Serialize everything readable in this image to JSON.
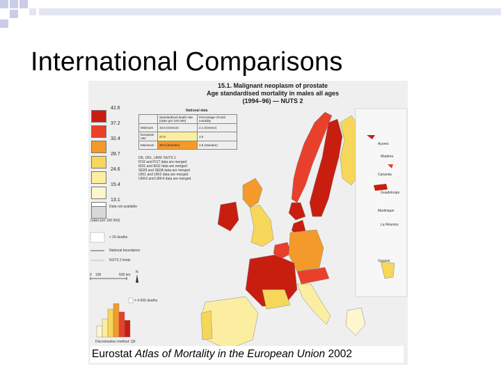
{
  "slide": {
    "title": "International Comparisons",
    "caption_prefix": "Eurostat ",
    "caption_italic": "Atlas of Mortality in the European Union",
    "caption_suffix": " 2002"
  },
  "map": {
    "title_line1": "15.1. Malignant neoplasm of prostate",
    "title_line2": "Age standardised mortality in males all ages",
    "title_line3": "(1994–96) — NUTS 2",
    "legend_classes": [
      {
        "value": "42.6",
        "color": "#c81e10"
      },
      {
        "value": "37.2",
        "color": "#e8402a"
      },
      {
        "value": "32.4",
        "color": "#f39a2a"
      },
      {
        "value": "28.7",
        "color": "#f7d75a"
      },
      {
        "value": "24.6",
        "color": "#fbeea0"
      },
      {
        "value": "15.4",
        "color": "#fdf6cf"
      },
      {
        "value": "13.1",
        "color": "#ffffff"
      }
    ],
    "not_available": "Data not available",
    "rates_unit": "(rates per 100 000)",
    "few_deaths": "< 20 deaths",
    "national_boundaries": "National boundaries",
    "nuts2_limits": "NUTS 2 limits",
    "scale_start": "0",
    "scale_mid": "100",
    "scale_end": "500 km",
    "north": "N",
    "histogram_label": "= 4 600 deaths",
    "discretisation": "Discretisation method: Q6",
    "national_data": {
      "heading": "National data",
      "col1": "Standardised death rate (rates per 100 000)",
      "col2": "Percentage of total mortality",
      "rows": [
        {
          "label": "Minimum",
          "rate": "16.5 (Greece)",
          "pct": "2.1 (Greece)"
        },
        {
          "label": "European rate",
          "rate": "27.8",
          "pct": "3.0"
        },
        {
          "label": "Maximum",
          "rate": "36.8 (Sweden)",
          "pct": "4.8 (Sweden)"
        }
      ]
    },
    "notes": [
      "DE, UKL, UKM: NUTS 1",
      "FI16 and FI17 data are merged",
      "IE01 and IE02 data are merged",
      "SE09 and SE0A data are merged",
      "UKI1 and UKI2 data are merged",
      "UKK3 and UKK4 data are merged"
    ],
    "insets": [
      "Açores",
      "Madeira",
      "Canarias",
      "Guadeloupe",
      "Martinique",
      "La Réunion",
      "Guyane"
    ]
  }
}
